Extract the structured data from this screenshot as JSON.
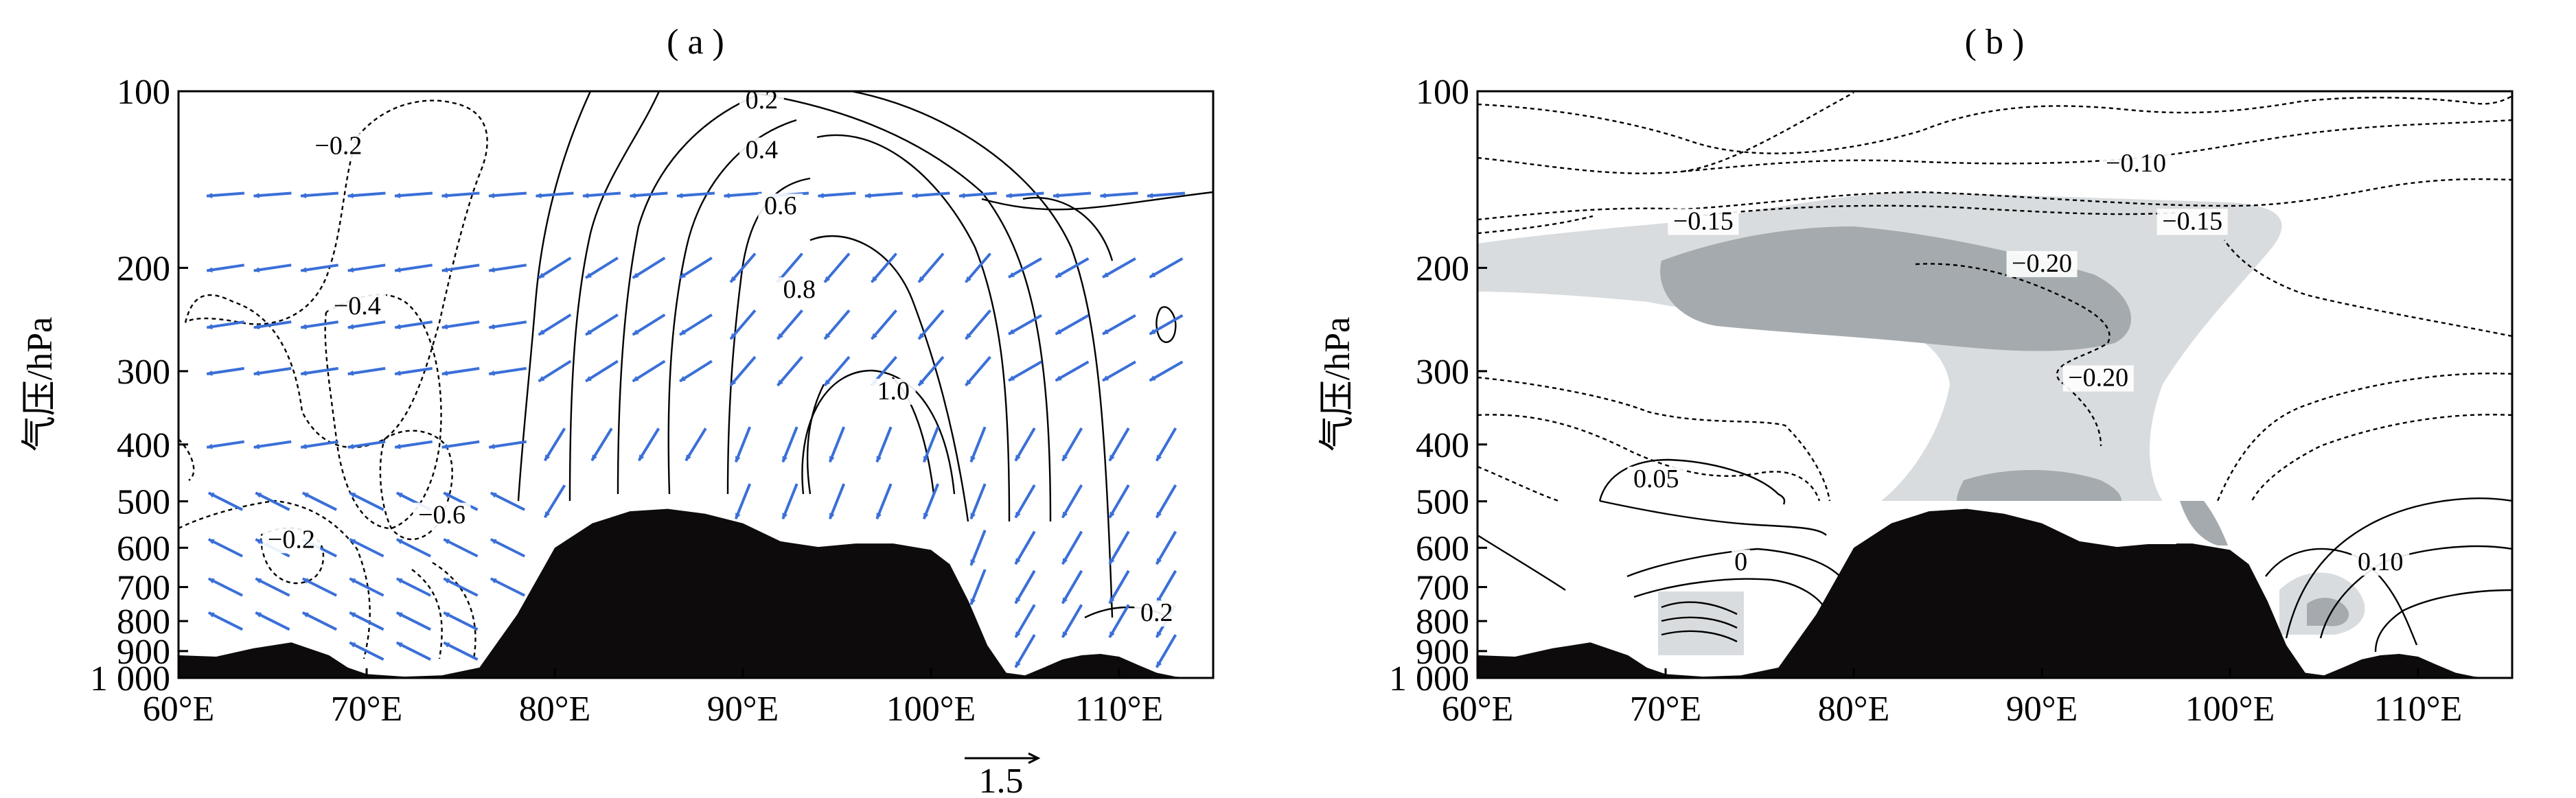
{
  "figure": {
    "panels": [
      {
        "id": "a",
        "label": "( a )",
        "ylabel": "气压/hPa"
      },
      {
        "id": "b",
        "label": "( b )",
        "ylabel": "气压/hPa"
      }
    ],
    "vector_key_label": "1.5",
    "colors": {
      "terrain": "#0d0b0b",
      "vector": "#3a6fd8",
      "contour": "#000000",
      "shade_light": "#d9dcde",
      "shade_dark": "#a4aaad"
    }
  },
  "chart_data": [
    {
      "type": "line",
      "panel": "a",
      "title": "( a )",
      "xlabel": "",
      "ylabel": "气压/hPa",
      "x_ticks": [
        "60°E",
        "70°E",
        "80°E",
        "90°E",
        "100°E",
        "110°E"
      ],
      "x_tick_values": [
        60,
        70,
        80,
        90,
        100,
        110
      ],
      "xlim": [
        60,
        115
      ],
      "y_ticks": [
        "100",
        "200",
        "300",
        "400",
        "500",
        "600",
        "700",
        "800",
        "900",
        "1 000"
      ],
      "y_tick_values": [
        100,
        200,
        300,
        400,
        500,
        600,
        700,
        800,
        900,
        1000
      ],
      "ylim": [
        1000,
        100
      ],
      "y_scale": "log",
      "contour_labels": [
        {
          "text": "−0.2",
          "lon": 68.5,
          "p": 128
        },
        {
          "text": "−0.4",
          "lon": 69.5,
          "p": 240
        },
        {
          "text": "−0.6",
          "lon": 74,
          "p": 545
        },
        {
          "text": "−0.2",
          "lon": 66,
          "p": 600
        },
        {
          "text": "0.2",
          "lon": 91,
          "p": 107
        },
        {
          "text": "0.4",
          "lon": 91,
          "p": 130
        },
        {
          "text": "0.6",
          "lon": 92,
          "p": 162
        },
        {
          "text": "0.8",
          "lon": 93,
          "p": 225
        },
        {
          "text": "1.0",
          "lon": 98,
          "p": 335
        },
        {
          "text": "0.2",
          "lon": 112,
          "p": 800
        }
      ],
      "vector_key": {
        "label": "1.5",
        "length": 1.5
      },
      "terrain_lon": [
        60,
        62,
        64,
        66,
        68,
        69,
        70,
        72,
        74,
        76,
        78,
        80,
        82,
        84,
        86,
        88,
        90,
        92,
        94,
        96,
        98,
        100,
        101,
        102,
        103,
        104,
        105,
        106,
        107,
        108,
        109,
        110,
        111,
        112,
        113,
        114,
        115
      ],
      "terrain_p": [
        915,
        920,
        890,
        870,
        915,
        960,
        985,
        995,
        990,
        960,
        780,
        600,
        545,
        520,
        515,
        525,
        545,
        585,
        598,
        590,
        590,
        605,
        640,
        740,
        880,
        980,
        990,
        960,
        930,
        915,
        910,
        920,
        950,
        980,
        995,
        1000,
        1000
      ]
    },
    {
      "type": "line",
      "panel": "b",
      "title": "( b )",
      "xlabel": "",
      "ylabel": "气压/hPa",
      "x_ticks": [
        "60°E",
        "70°E",
        "80°E",
        "90°E",
        "100°E",
        "110°E"
      ],
      "x_tick_values": [
        60,
        70,
        80,
        90,
        100,
        110
      ],
      "xlim": [
        60,
        115
      ],
      "y_ticks": [
        "100",
        "200",
        "300",
        "400",
        "500",
        "600",
        "700",
        "800",
        "900",
        "1 000"
      ],
      "y_tick_values": [
        100,
        200,
        300,
        400,
        500,
        600,
        700,
        800,
        900,
        1000
      ],
      "ylim": [
        1000,
        100
      ],
      "y_scale": "log",
      "contour_labels": [
        {
          "text": "−0.10",
          "lon": 95,
          "p": 137
        },
        {
          "text": "−0.15",
          "lon": 72,
          "p": 172
        },
        {
          "text": "−0.15",
          "lon": 98,
          "p": 172
        },
        {
          "text": "−0.20",
          "lon": 90,
          "p": 203
        },
        {
          "text": "−0.20",
          "lon": 93,
          "p": 318
        },
        {
          "text": "0.05",
          "lon": 69.5,
          "p": 473
        },
        {
          "text": "0",
          "lon": 74,
          "p": 655
        },
        {
          "text": "0.10",
          "lon": 108,
          "p": 655
        }
      ],
      "terrain_lon": [
        60,
        62,
        64,
        66,
        68,
        69,
        70,
        72,
        74,
        76,
        78,
        80,
        82,
        84,
        86,
        88,
        90,
        92,
        94,
        96,
        98,
        100,
        101,
        102,
        103,
        104,
        105,
        106,
        107,
        108,
        109,
        110,
        111,
        112,
        113,
        114,
        115
      ],
      "terrain_p": [
        915,
        920,
        890,
        870,
        915,
        960,
        985,
        995,
        990,
        960,
        780,
        600,
        545,
        520,
        515,
        525,
        545,
        585,
        598,
        590,
        590,
        605,
        640,
        740,
        880,
        980,
        990,
        960,
        930,
        915,
        910,
        920,
        950,
        980,
        995,
        1000,
        1000
      ]
    }
  ]
}
